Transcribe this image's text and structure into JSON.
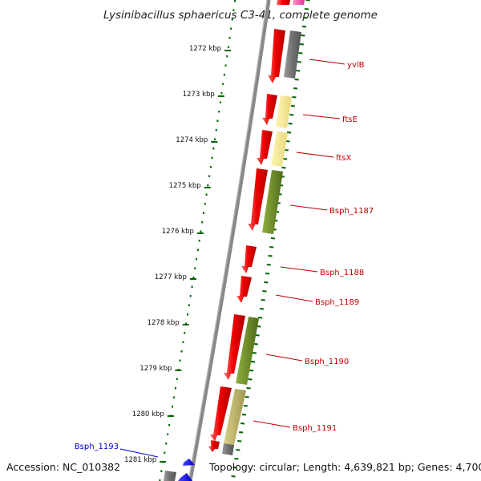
{
  "title": "Lysinibacillus sphaericus C3-41, complete genome",
  "footer": {
    "accession": "Accession: NC_010382",
    "topology": "Topology: circular; Length: 4,639,821 bp; Genes: 4,700"
  },
  "ticks": [
    {
      "label": "1272 kbp",
      "kbp": 1272
    },
    {
      "label": "1273 kbp",
      "kbp": 1273
    },
    {
      "label": "1274 kbp",
      "kbp": 1274
    },
    {
      "label": "1275 kbp",
      "kbp": 1275
    },
    {
      "label": "1276 kbp",
      "kbp": 1276
    },
    {
      "label": "1277 kbp",
      "kbp": 1277
    },
    {
      "label": "1278 kbp",
      "kbp": 1278
    },
    {
      "label": "1279 kbp",
      "kbp": 1279
    },
    {
      "label": "1280 kbp",
      "kbp": 1280
    },
    {
      "label": "1281 kbp",
      "kbp": 1281
    }
  ],
  "gene_labels": [
    {
      "label": "yvlB",
      "color": "red"
    },
    {
      "label": "ftsE",
      "color": "red"
    },
    {
      "label": "ftsX",
      "color": "red"
    },
    {
      "label": "Bsph_1187",
      "color": "red"
    },
    {
      "label": "Bsph_1188",
      "color": "red"
    },
    {
      "label": "Bsph_1189",
      "color": "red"
    },
    {
      "label": "Bsph_1190",
      "color": "red"
    },
    {
      "label": "Bsph_1191",
      "color": "red"
    },
    {
      "label": "Bsph_1193",
      "color": "blue"
    }
  ],
  "colors": {
    "cds": "#ee0000",
    "cog_gray": "#777777",
    "cog_yellow": "#f0e68c",
    "cog_olive": "#6b8e23",
    "cog_khaki": "#bdb76b",
    "cog_pink": "#ff69b4",
    "reverse_strand": "#0000ee",
    "tick": "#006400",
    "backbone": "#888888"
  }
}
